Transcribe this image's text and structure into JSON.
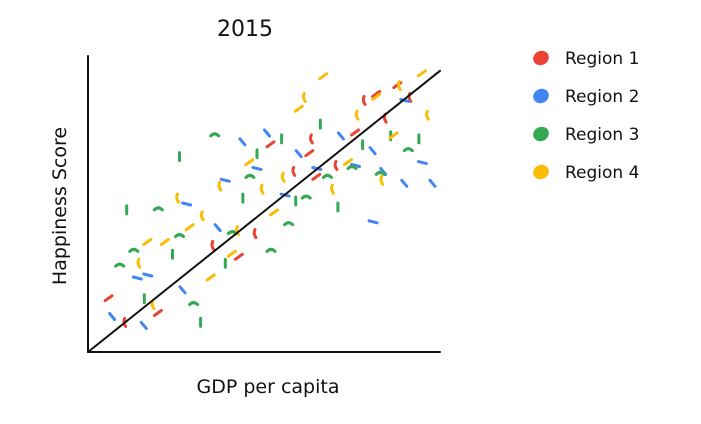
{
  "chart_data": {
    "type": "scatter",
    "title": "2015",
    "xlabel": "GDP per capita",
    "ylabel": "Happiness Score",
    "xlim": [
      0,
      100
    ],
    "ylim": [
      0,
      100
    ],
    "grid": false,
    "legend_position": "right",
    "trendline": {
      "x": [
        0,
        100
      ],
      "y": [
        0,
        95
      ]
    },
    "series": [
      {
        "name": "Region 1",
        "color": "#ea4335",
        "points": [
          [
            6,
            18
          ],
          [
            11,
            10
          ],
          [
            20,
            13
          ],
          [
            36,
            36
          ],
          [
            43,
            32
          ],
          [
            48,
            40
          ],
          [
            52,
            70
          ],
          [
            59,
            61
          ],
          [
            63,
            67
          ],
          [
            64,
            72
          ],
          [
            65,
            59
          ],
          [
            71,
            63
          ],
          [
            76,
            74
          ],
          [
            79,
            85
          ],
          [
            82,
            87
          ],
          [
            85,
            79
          ],
          [
            88,
            90
          ],
          [
            92,
            86
          ]
        ]
      },
      {
        "name": "Region 2",
        "color": "#4285f4",
        "points": [
          [
            7,
            12
          ],
          [
            14,
            25
          ],
          [
            16,
            9
          ],
          [
            17,
            26
          ],
          [
            27,
            21
          ],
          [
            28,
            50
          ],
          [
            37,
            42
          ],
          [
            39,
            58
          ],
          [
            44,
            71
          ],
          [
            48,
            62
          ],
          [
            51,
            74
          ],
          [
            56,
            53
          ],
          [
            60,
            67
          ],
          [
            65,
            62
          ],
          [
            72,
            73
          ],
          [
            76,
            63
          ],
          [
            81,
            68
          ],
          [
            81,
            44
          ],
          [
            84,
            61
          ],
          [
            90,
            85
          ],
          [
            90,
            57
          ],
          [
            95,
            64
          ],
          [
            98,
            57
          ]
        ]
      },
      {
        "name": "Region 3",
        "color": "#34a853",
        "points": [
          [
            9,
            29
          ],
          [
            11,
            48
          ],
          [
            13,
            34
          ],
          [
            16,
            18
          ],
          [
            20,
            48
          ],
          [
            24,
            33
          ],
          [
            26,
            39
          ],
          [
            26,
            66
          ],
          [
            30,
            16
          ],
          [
            32,
            10
          ],
          [
            36,
            73
          ],
          [
            39,
            30
          ],
          [
            41,
            40
          ],
          [
            44,
            52
          ],
          [
            46,
            59
          ],
          [
            48,
            67
          ],
          [
            52,
            34
          ],
          [
            55,
            72
          ],
          [
            57,
            43
          ],
          [
            59,
            51
          ],
          [
            62,
            52
          ],
          [
            66,
            77
          ],
          [
            68,
            59
          ],
          [
            71,
            49
          ],
          [
            75,
            62
          ],
          [
            78,
            70
          ],
          [
            83,
            60
          ],
          [
            86,
            73
          ],
          [
            91,
            68
          ],
          [
            94,
            72
          ]
        ]
      },
      {
        "name": "Region 4",
        "color": "#fbbc05",
        "points": [
          [
            15,
            30
          ],
          [
            17,
            37
          ],
          [
            19,
            16
          ],
          [
            22,
            37
          ],
          [
            26,
            52
          ],
          [
            29,
            42
          ],
          [
            33,
            46
          ],
          [
            35,
            25
          ],
          [
            38,
            56
          ],
          [
            41,
            33
          ],
          [
            43,
            41
          ],
          [
            46,
            64
          ],
          [
            50,
            55
          ],
          [
            53,
            47
          ],
          [
            56,
            59
          ],
          [
            60,
            82
          ],
          [
            62,
            86
          ],
          [
            67,
            93
          ],
          [
            70,
            55
          ],
          [
            74,
            64
          ],
          [
            77,
            80
          ],
          [
            82,
            86
          ],
          [
            84,
            58
          ],
          [
            87,
            73
          ],
          [
            89,
            90
          ],
          [
            95,
            94
          ],
          [
            97,
            80
          ]
        ]
      }
    ]
  }
}
